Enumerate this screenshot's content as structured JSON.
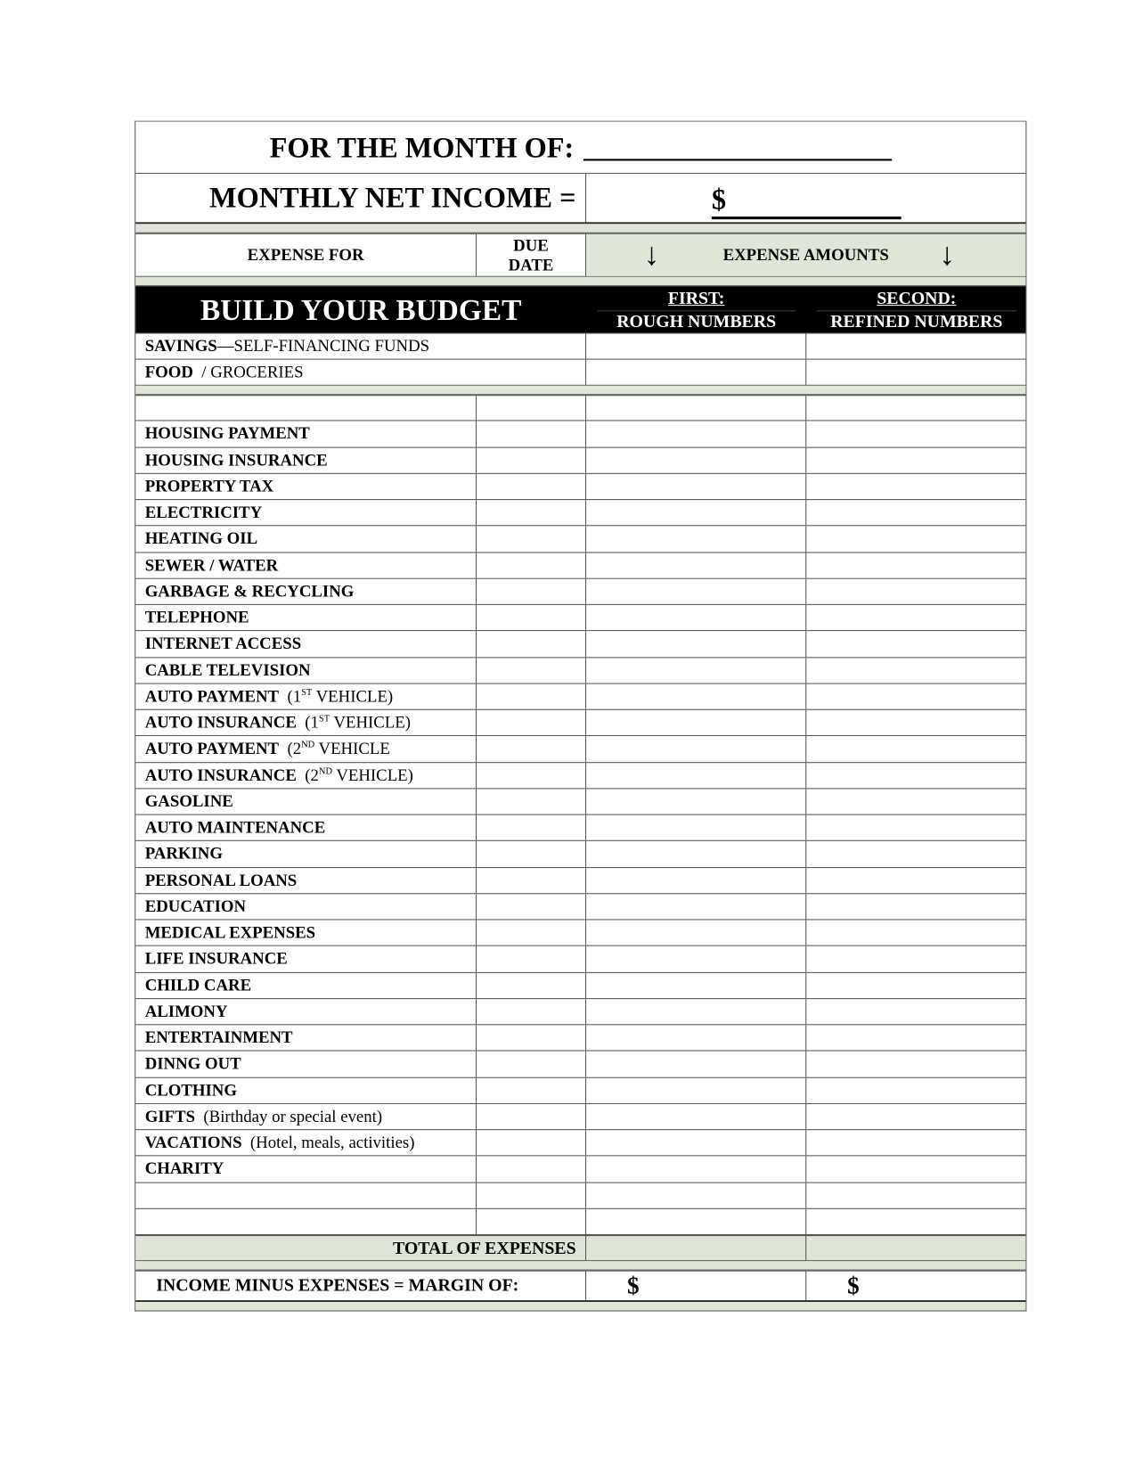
{
  "header": {
    "month_label": "FOR THE MONTH OF:",
    "income_label": "MONTHLY NET INCOME =",
    "income_currency": "$"
  },
  "columns": {
    "expense_for": "EXPENSE FOR",
    "due_date_1": "DUE",
    "due_date_2": "DATE",
    "expense_amounts": "EXPENSE AMOUNTS",
    "build_title": "BUILD YOUR BUDGET",
    "first_1": "FIRST:",
    "first_2": "ROUGH NUMBERS",
    "second_1": "SECOND:",
    "second_2": "REFINED NUMBERS"
  },
  "top_items": [
    {
      "bold": "SAVINGS",
      "rest": "—SELF-FINANCING FUNDS"
    },
    {
      "bold": "FOOD",
      "rest": "  / GROCERIES"
    }
  ],
  "items": [
    {
      "bold": "",
      "rest": ""
    },
    {
      "bold": "HOUSING PAYMENT",
      "rest": ""
    },
    {
      "bold": "HOUSING INSURANCE",
      "rest": ""
    },
    {
      "bold": "PROPERTY TAX",
      "rest": ""
    },
    {
      "bold": "ELECTRICITY",
      "rest": ""
    },
    {
      "bold": "HEATING OIL",
      "rest": ""
    },
    {
      "bold": "SEWER / WATER",
      "rest": ""
    },
    {
      "bold": "GARBAGE & RECYCLING",
      "rest": ""
    },
    {
      "bold": "TELEPHONE",
      "rest": ""
    },
    {
      "bold": "INTERNET ACCESS",
      "rest": ""
    },
    {
      "bold": "CABLE TELEVISION",
      "rest": ""
    },
    {
      "bold": "AUTO PAYMENT",
      "rest": "  (1",
      "sup": "ST",
      "after": " VEHICLE)"
    },
    {
      "bold": "AUTO INSURANCE",
      "rest": "  (1",
      "sup": "ST",
      "after": " VEHICLE)"
    },
    {
      "bold": "AUTO PAYMENT",
      "rest": "  (2",
      "sup": "ND",
      "after": " VEHICLE"
    },
    {
      "bold": "AUTO INSURANCE",
      "rest": "  (2",
      "sup": "ND",
      "after": " VEHICLE)"
    },
    {
      "bold": "GASOLINE",
      "rest": ""
    },
    {
      "bold": "AUTO MAINTENANCE",
      "rest": ""
    },
    {
      "bold": "PARKING",
      "rest": ""
    },
    {
      "bold": "PERSONAL LOANS",
      "rest": ""
    },
    {
      "bold": "EDUCATION",
      "rest": ""
    },
    {
      "bold": "MEDICAL EXPENSES",
      "rest": ""
    },
    {
      "bold": "LIFE INSURANCE",
      "rest": ""
    },
    {
      "bold": "CHILD CARE",
      "rest": ""
    },
    {
      "bold": "ALIMONY",
      "rest": ""
    },
    {
      "bold": "ENTERTAINMENT",
      "rest": ""
    },
    {
      "bold": "DINNG OUT",
      "rest": ""
    },
    {
      "bold": "CLOTHING",
      "rest": ""
    },
    {
      "bold": "GIFTS",
      "rest": "  (Birthday or special event)"
    },
    {
      "bold": "VACATIONS",
      "rest": "  (Hotel, meals, activities)"
    },
    {
      "bold": "CHARITY",
      "rest": ""
    },
    {
      "bold": "",
      "rest": ""
    },
    {
      "bold": "",
      "rest": ""
    }
  ],
  "footer": {
    "total_label": "TOTAL OF EXPENSES",
    "margin_label": "INCOME MINUS EXPENSES = MARGIN OF:",
    "currency_first": "$",
    "currency_second": "$"
  },
  "colors": {
    "band": "#dfe6d8",
    "header_black": "#000000"
  },
  "icons": {
    "arrow": "arrow-down-icon"
  }
}
